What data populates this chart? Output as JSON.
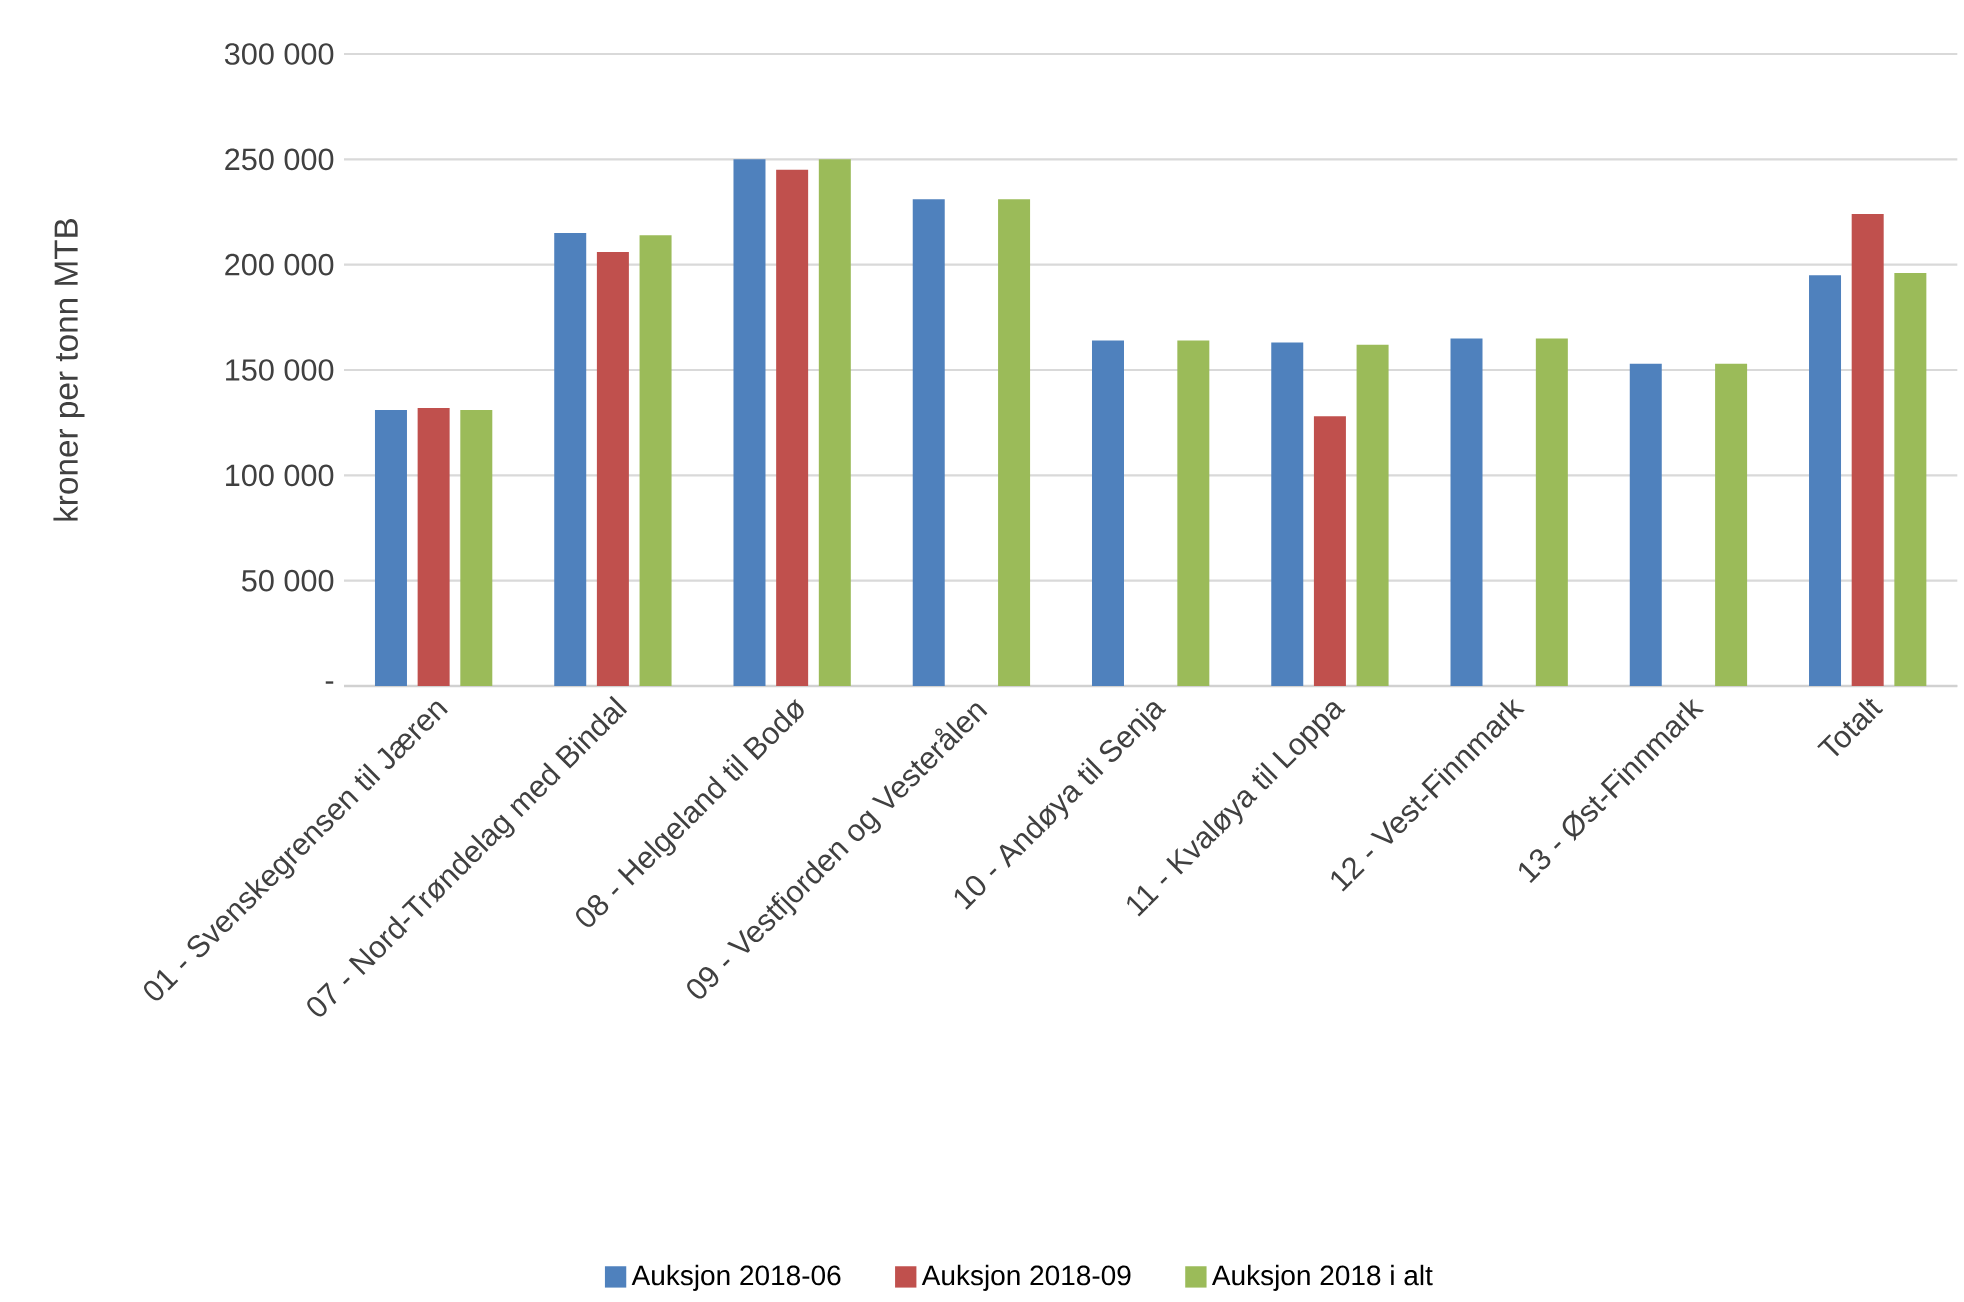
{
  "chart_data": {
    "type": "bar",
    "ylabel": "kroner per tonn MTB",
    "categories": [
      "01 - Svenskegrensen til Jæren",
      "07 - Nord-Trøndelag med Bindal",
      "08 - Helgeland til Bodø",
      "09 - Vestfjorden og Vesterålen",
      "10 - Andøya til Senja",
      "11 - Kvaløya til Loppa",
      "12 - Vest-Finnmark",
      "13 - Øst-Finnmark",
      "Totalt"
    ],
    "series": [
      {
        "name": "Auksjon 2018-06",
        "color": "#4f81bd",
        "values": [
          131000,
          215000,
          250000,
          231000,
          164000,
          163000,
          165000,
          153000,
          195000
        ]
      },
      {
        "name": "Auksjon 2018-09",
        "color": "#c0504d",
        "values": [
          132000,
          206000,
          245000,
          null,
          null,
          128000,
          null,
          null,
          224000
        ]
      },
      {
        "name": "Auksjon 2018 i alt",
        "color": "#9bbb59",
        "values": [
          131000,
          214000,
          250000,
          231000,
          164000,
          162000,
          165000,
          153000,
          196000
        ]
      }
    ],
    "ylim": [
      0,
      300000
    ],
    "yticks": [
      {
        "value": 0,
        "label": "-"
      },
      {
        "value": 50000,
        "label": "50 000"
      },
      {
        "value": 100000,
        "label": "100 000"
      },
      {
        "value": 150000,
        "label": "150 000"
      },
      {
        "value": 200000,
        "label": "200 000"
      },
      {
        "value": 250000,
        "label": "250 000"
      },
      {
        "value": 300000,
        "label": "300 000"
      }
    ],
    "grid": "y",
    "legend": "bottom"
  }
}
